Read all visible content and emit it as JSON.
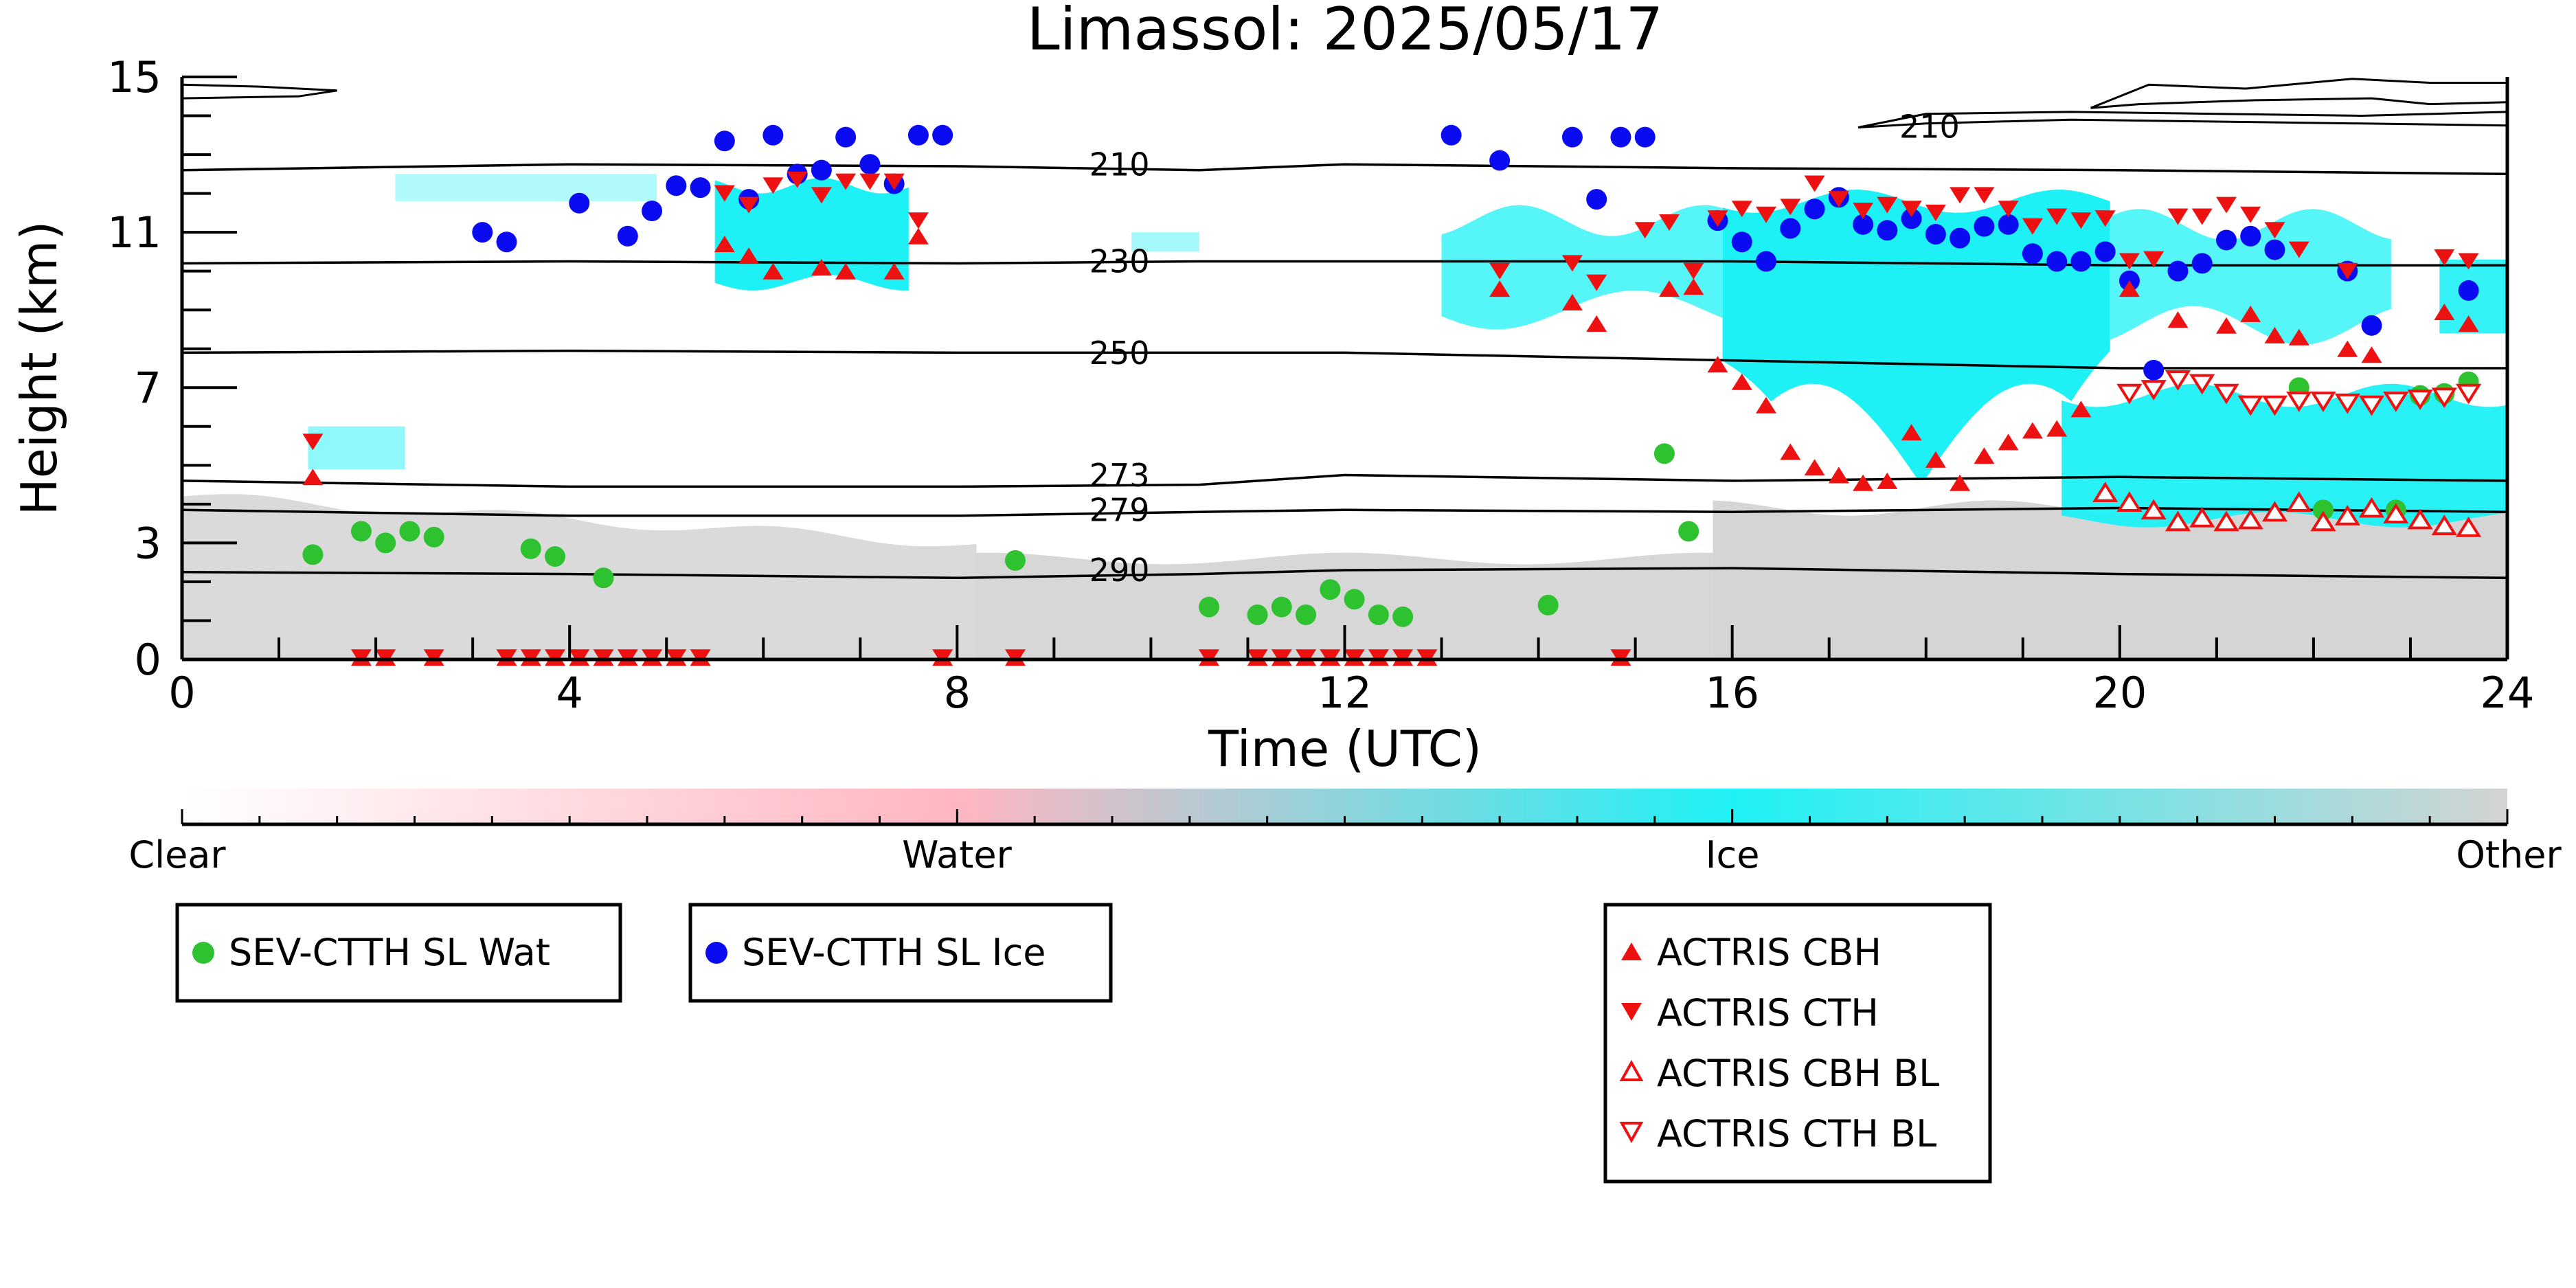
{
  "colors": {
    "clear": "#ffffff",
    "water": "#ffb6c1",
    "ice": "#1ef1f5",
    "other": "#d3d3d3",
    "sev_wat": "#2ec230",
    "sev_ice": "#0b0bf2",
    "actris": "#ee1111",
    "axis": "#000000"
  },
  "chart_data": {
    "type": "scatter",
    "title": "Limassol: 2025/05/17",
    "xlabel": "Time (UTC)",
    "ylabel": "Height (km)",
    "xlim": [
      0,
      24
    ],
    "ylim": [
      0,
      15
    ],
    "x_ticks": [
      0,
      4,
      8,
      12,
      16,
      20,
      24
    ],
    "y_ticks": [
      0,
      3,
      7,
      11,
      15
    ],
    "x_tick_labels": [
      "0",
      "4",
      "8",
      "12",
      "16",
      "20",
      "24"
    ],
    "y_tick_labels": [
      "0",
      "3",
      "7",
      "11",
      "15"
    ],
    "background": "cloud phase classification (Clear / Water / Ice / Other)",
    "colorbar": {
      "labels": [
        "Clear",
        "Water",
        "Ice",
        "Other"
      ]
    },
    "temperature_contours": [
      {
        "label": "210",
        "x": [
          0,
          4,
          8,
          10.5,
          12,
          16,
          20,
          24
        ],
        "y": [
          12.6,
          12.75,
          12.7,
          12.6,
          12.75,
          12.65,
          12.6,
          12.5
        ]
      },
      {
        "label": "230",
        "x": [
          0,
          4,
          8,
          10.5,
          12,
          16,
          20,
          24
        ],
        "y": [
          10.2,
          10.25,
          10.2,
          10.25,
          10.25,
          10.25,
          10.15,
          10.15
        ]
      },
      {
        "label": "250",
        "x": [
          0,
          4,
          8,
          10.5,
          12,
          16,
          20,
          24
        ],
        "y": [
          7.9,
          7.95,
          7.9,
          7.9,
          7.9,
          7.7,
          7.5,
          7.5
        ]
      },
      {
        "label": "273",
        "x": [
          0,
          4,
          8,
          10.5,
          12,
          16,
          20,
          24
        ],
        "y": [
          4.6,
          4.45,
          4.45,
          4.5,
          4.75,
          4.6,
          4.7,
          4.6
        ]
      },
      {
        "label": "279",
        "x": [
          0,
          4,
          8,
          10.5,
          12,
          16,
          20,
          24
        ],
        "y": [
          3.85,
          3.7,
          3.7,
          3.8,
          3.85,
          3.8,
          3.9,
          3.8
        ]
      },
      {
        "label": "290",
        "x": [
          0,
          4,
          8,
          10.5,
          12,
          16,
          20,
          24
        ],
        "y": [
          2.25,
          2.2,
          2.1,
          2.2,
          2.3,
          2.35,
          2.2,
          2.1
        ]
      }
    ],
    "contour_label_210_upper": "210",
    "series": [
      {
        "name": "SEV-CTTH SL Wat",
        "marker": "circle",
        "points": [
          [
            1.35,
            2.7
          ],
          [
            1.85,
            3.3
          ],
          [
            2.1,
            3.0
          ],
          [
            2.35,
            3.3
          ],
          [
            2.6,
            3.15
          ],
          [
            3.6,
            2.85
          ],
          [
            3.85,
            2.65
          ],
          [
            4.35,
            2.1
          ],
          [
            8.6,
            2.55
          ],
          [
            10.6,
            1.35
          ],
          [
            11.1,
            1.15
          ],
          [
            11.35,
            1.35
          ],
          [
            11.6,
            1.15
          ],
          [
            11.85,
            1.8
          ],
          [
            12.1,
            1.55
          ],
          [
            12.35,
            1.15
          ],
          [
            12.6,
            1.1
          ],
          [
            14.1,
            1.4
          ],
          [
            15.3,
            5.3
          ],
          [
            15.55,
            3.3
          ],
          [
            21.85,
            7.0
          ],
          [
            22.1,
            3.85
          ],
          [
            22.85,
            3.85
          ],
          [
            23.1,
            6.8
          ],
          [
            23.35,
            6.85
          ],
          [
            23.6,
            7.15
          ]
        ]
      },
      {
        "name": "SEV-CTTH SL Ice",
        "marker": "circle",
        "points": [
          [
            3.1,
            11.0
          ],
          [
            3.35,
            10.75
          ],
          [
            4.1,
            11.75
          ],
          [
            4.6,
            10.9
          ],
          [
            4.85,
            11.55
          ],
          [
            5.1,
            12.2
          ],
          [
            5.35,
            12.15
          ],
          [
            5.6,
            13.35
          ],
          [
            5.85,
            11.85
          ],
          [
            6.1,
            13.5
          ],
          [
            6.35,
            12.5
          ],
          [
            6.6,
            12.6
          ],
          [
            6.85,
            13.45
          ],
          [
            7.1,
            12.75
          ],
          [
            7.35,
            12.25
          ],
          [
            7.6,
            13.5
          ],
          [
            7.85,
            13.5
          ],
          [
            13.1,
            13.5
          ],
          [
            13.6,
            12.85
          ],
          [
            14.35,
            13.45
          ],
          [
            14.6,
            11.85
          ],
          [
            14.85,
            13.45
          ],
          [
            15.1,
            13.45
          ],
          [
            15.85,
            11.3
          ],
          [
            16.1,
            10.75
          ],
          [
            16.35,
            10.25
          ],
          [
            16.6,
            11.1
          ],
          [
            16.85,
            11.6
          ],
          [
            17.1,
            11.9
          ],
          [
            17.35,
            11.2
          ],
          [
            17.6,
            11.05
          ],
          [
            17.85,
            11.35
          ],
          [
            18.1,
            10.95
          ],
          [
            18.35,
            10.85
          ],
          [
            18.6,
            11.15
          ],
          [
            18.85,
            11.2
          ],
          [
            19.1,
            10.45
          ],
          [
            19.35,
            10.25
          ],
          [
            19.6,
            10.25
          ],
          [
            19.85,
            10.5
          ],
          [
            20.1,
            9.75
          ],
          [
            20.35,
            7.45
          ],
          [
            20.6,
            10.0
          ],
          [
            20.85,
            10.2
          ],
          [
            21.1,
            10.8
          ],
          [
            21.35,
            10.9
          ],
          [
            21.6,
            10.55
          ],
          [
            22.35,
            10.0
          ],
          [
            22.6,
            8.6
          ],
          [
            23.6,
            9.5
          ]
        ]
      },
      {
        "name": "ACTRIS CBH",
        "marker": "triangle-up-filled",
        "points": [
          [
            1.35,
            4.7
          ],
          [
            1.85,
            0.05
          ],
          [
            2.1,
            0.05
          ],
          [
            2.6,
            0.05
          ],
          [
            3.35,
            0.05
          ],
          [
            3.6,
            0.05
          ],
          [
            3.85,
            0.05
          ],
          [
            4.1,
            0.05
          ],
          [
            4.35,
            0.05
          ],
          [
            4.6,
            0.05
          ],
          [
            4.85,
            0.05
          ],
          [
            5.1,
            0.05
          ],
          [
            5.35,
            0.05
          ],
          [
            5.6,
            10.7
          ],
          [
            5.85,
            10.4
          ],
          [
            6.1,
            10.0
          ],
          [
            6.6,
            10.1
          ],
          [
            6.85,
            10.0
          ],
          [
            7.35,
            10.0
          ],
          [
            7.6,
            10.9
          ],
          [
            7.85,
            0.05
          ],
          [
            8.6,
            0.05
          ],
          [
            10.6,
            0.05
          ],
          [
            11.1,
            0.05
          ],
          [
            11.35,
            0.05
          ],
          [
            11.6,
            0.05
          ],
          [
            11.85,
            0.05
          ],
          [
            12.1,
            0.05
          ],
          [
            12.35,
            0.05
          ],
          [
            12.6,
            0.05
          ],
          [
            12.85,
            0.05
          ],
          [
            13.6,
            9.55
          ],
          [
            14.35,
            9.2
          ],
          [
            14.6,
            8.65
          ],
          [
            14.85,
            0.05
          ],
          [
            15.35,
            9.55
          ],
          [
            15.6,
            9.6
          ],
          [
            15.85,
            7.6
          ],
          [
            16.1,
            7.15
          ],
          [
            16.35,
            6.55
          ],
          [
            16.6,
            5.35
          ],
          [
            16.85,
            4.95
          ],
          [
            17.1,
            4.75
          ],
          [
            17.35,
            4.55
          ],
          [
            17.6,
            4.6
          ],
          [
            17.85,
            5.85
          ],
          [
            18.1,
            5.15
          ],
          [
            18.35,
            4.55
          ],
          [
            18.6,
            5.25
          ],
          [
            18.85,
            5.6
          ],
          [
            19.1,
            5.9
          ],
          [
            19.35,
            5.95
          ],
          [
            19.6,
            6.45
          ],
          [
            20.1,
            9.55
          ],
          [
            20.6,
            8.75
          ],
          [
            21.1,
            8.6
          ],
          [
            21.35,
            8.9
          ],
          [
            21.6,
            8.35
          ],
          [
            21.85,
            8.3
          ],
          [
            22.35,
            8.0
          ],
          [
            22.6,
            7.85
          ],
          [
            23.35,
            8.95
          ],
          [
            23.6,
            8.65
          ]
        ]
      },
      {
        "name": "ACTRIS CTH",
        "marker": "triangle-down-filled",
        "points": [
          [
            1.35,
            5.6
          ],
          [
            1.85,
            0.05
          ],
          [
            2.1,
            0.05
          ],
          [
            2.6,
            0.05
          ],
          [
            3.35,
            0.05
          ],
          [
            3.6,
            0.05
          ],
          [
            3.85,
            0.05
          ],
          [
            4.1,
            0.05
          ],
          [
            4.35,
            0.05
          ],
          [
            4.6,
            0.05
          ],
          [
            4.85,
            0.05
          ],
          [
            5.1,
            0.05
          ],
          [
            5.35,
            0.05
          ],
          [
            5.6,
            12.0
          ],
          [
            5.85,
            11.7
          ],
          [
            6.1,
            12.2
          ],
          [
            6.35,
            12.35
          ],
          [
            6.6,
            11.95
          ],
          [
            6.85,
            12.3
          ],
          [
            7.1,
            12.3
          ],
          [
            7.35,
            12.3
          ],
          [
            7.6,
            11.3
          ],
          [
            7.85,
            0.05
          ],
          [
            8.6,
            0.05
          ],
          [
            10.6,
            0.05
          ],
          [
            11.1,
            0.05
          ],
          [
            11.35,
            0.05
          ],
          [
            11.6,
            0.05
          ],
          [
            11.85,
            0.05
          ],
          [
            12.1,
            0.05
          ],
          [
            12.35,
            0.05
          ],
          [
            12.6,
            0.05
          ],
          [
            12.85,
            0.05
          ],
          [
            13.6,
            10.0
          ],
          [
            14.35,
            10.2
          ],
          [
            14.6,
            9.7
          ],
          [
            14.85,
            0.05
          ],
          [
            15.1,
            11.05
          ],
          [
            15.35,
            11.25
          ],
          [
            15.6,
            10.0
          ],
          [
            15.85,
            11.35
          ],
          [
            16.1,
            11.6
          ],
          [
            16.35,
            11.45
          ],
          [
            16.6,
            11.65
          ],
          [
            16.85,
            12.25
          ],
          [
            17.1,
            11.85
          ],
          [
            17.35,
            11.55
          ],
          [
            17.6,
            11.7
          ],
          [
            17.85,
            11.6
          ],
          [
            18.1,
            11.5
          ],
          [
            18.35,
            11.95
          ],
          [
            18.6,
            11.95
          ],
          [
            18.85,
            11.6
          ],
          [
            19.1,
            11.15
          ],
          [
            19.35,
            11.4
          ],
          [
            19.6,
            11.3
          ],
          [
            19.85,
            11.35
          ],
          [
            20.1,
            10.25
          ],
          [
            20.35,
            10.3
          ],
          [
            20.6,
            11.4
          ],
          [
            20.85,
            11.4
          ],
          [
            21.1,
            11.7
          ],
          [
            21.35,
            11.45
          ],
          [
            21.6,
            11.05
          ],
          [
            21.85,
            10.55
          ],
          [
            22.35,
            10.0
          ],
          [
            23.35,
            10.35
          ],
          [
            23.6,
            10.25
          ]
        ]
      },
      {
        "name": "ACTRIS CBH BL",
        "marker": "triangle-up-open",
        "points": [
          [
            19.85,
            4.3
          ],
          [
            20.1,
            4.05
          ],
          [
            20.35,
            3.85
          ],
          [
            20.6,
            3.55
          ],
          [
            20.85,
            3.65
          ],
          [
            21.1,
            3.55
          ],
          [
            21.35,
            3.6
          ],
          [
            21.6,
            3.8
          ],
          [
            21.85,
            4.05
          ],
          [
            22.1,
            3.55
          ],
          [
            22.35,
            3.7
          ],
          [
            22.6,
            3.9
          ],
          [
            22.85,
            3.75
          ],
          [
            23.1,
            3.6
          ],
          [
            23.35,
            3.45
          ],
          [
            23.6,
            3.4
          ]
        ]
      },
      {
        "name": "ACTRIS CTH BL",
        "marker": "triangle-down-open",
        "points": [
          [
            20.1,
            6.85
          ],
          [
            20.35,
            6.95
          ],
          [
            20.6,
            7.2
          ],
          [
            20.85,
            7.1
          ],
          [
            21.1,
            6.85
          ],
          [
            21.35,
            6.55
          ],
          [
            21.6,
            6.55
          ],
          [
            21.85,
            6.65
          ],
          [
            22.1,
            6.65
          ],
          [
            22.35,
            6.6
          ],
          [
            22.6,
            6.55
          ],
          [
            22.85,
            6.65
          ],
          [
            23.1,
            6.7
          ],
          [
            23.35,
            6.75
          ],
          [
            23.6,
            6.85
          ]
        ]
      }
    ]
  }
}
